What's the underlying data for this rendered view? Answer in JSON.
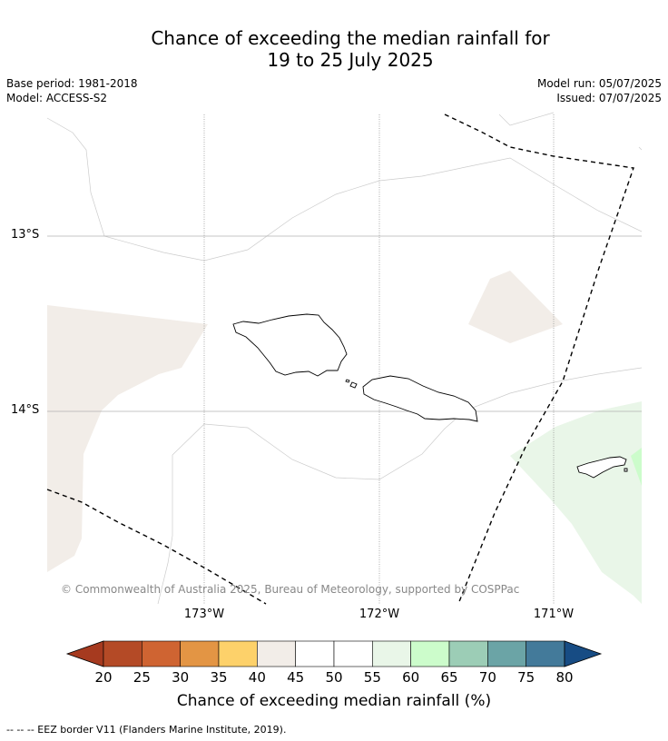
{
  "title_line1": "Chance of exceeding the median rainfall for",
  "title_line2": "19 to 25 July 2025",
  "base_period": "Base period: 1981-2018",
  "model": "Model: ACCESS-S2",
  "model_run": "Model run: 05/07/2025",
  "issued": "Issued: 07/07/2025",
  "lat_labels": [
    "13°S",
    "14°S"
  ],
  "lon_labels": [
    "173°W",
    "172°W",
    "171°W"
  ],
  "copyright": "© Commonwealth of Australia 2025, Bureau of Meteorology, supported by COSPPac",
  "colorbar": {
    "ticks": [
      "20",
      "25",
      "30",
      "35",
      "40",
      "45",
      "50",
      "55",
      "60",
      "65",
      "70",
      "75",
      "80"
    ],
    "title": "Chance of exceeding median rainfall (%)",
    "colors": [
      "#a63a1f",
      "#b44a26",
      "#cf6432",
      "#e39544",
      "#fdd16a",
      "#f2ede8",
      "#ffffff",
      "#ffffff",
      "#e9f6e8",
      "#ccfccb",
      "#9ccdb6",
      "#6ba4a6",
      "#437a9a",
      "#174c84"
    ]
  },
  "footnote": "-- -- -- EEZ border V11 (Flanders Marine Institute, 2019)."
}
